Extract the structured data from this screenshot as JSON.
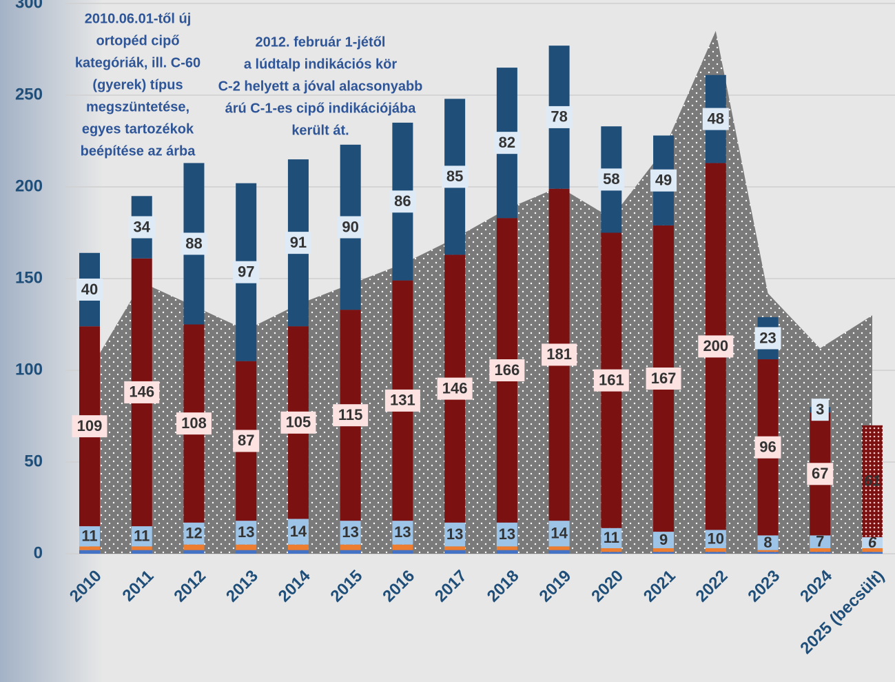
{
  "chart_data": {
    "type": "bar",
    "annotations": [
      [
        "2010.06.01-től új",
        "ortopéd cipő",
        "kategóriák, ill. C-60",
        "(gyerek) típus",
        "megszüntetése,",
        "egyes tartozékok",
        "beépítése az árba"
      ],
      [
        "2012. február 1-jétől",
        "a lúdtalp indikációs kör",
        "C-2 helyett a jóval alacsonyabb",
        "árú C-1-es cipő indikációjába",
        "került át."
      ]
    ],
    "categories": [
      "2010",
      "2011",
      "2012",
      "2013",
      "2014",
      "2015",
      "2016",
      "2017",
      "2018",
      "2019",
      "2020",
      "2021",
      "2022",
      "2023",
      "2024",
      "2025 (becsült)"
    ],
    "area": {
      "color": "#7a7a7a",
      "values": [
        100,
        148,
        135,
        122,
        136,
        147,
        158,
        172,
        188,
        200,
        183,
        220,
        285,
        142,
        112,
        130
      ]
    },
    "series": [
      {
        "color": "#4472c4",
        "values": [
          2,
          2,
          2,
          2,
          2,
          2,
          2,
          2,
          2,
          2,
          1,
          1,
          1,
          1,
          1,
          1
        ]
      },
      {
        "color": "#ed7d31",
        "values": [
          2,
          2,
          3,
          3,
          3,
          3,
          3,
          2,
          2,
          2,
          2,
          2,
          2,
          1,
          2,
          2
        ]
      },
      {
        "color": "#9dc3e6",
        "show_labels": true,
        "values": [
          11,
          11,
          12,
          13,
          14,
          13,
          13,
          13,
          13,
          14,
          11,
          9,
          10,
          8,
          7,
          6
        ]
      },
      {
        "color": "#7b1111",
        "show_labels": true,
        "values": [
          109,
          146,
          108,
          87,
          105,
          115,
          131,
          146,
          166,
          181,
          161,
          167,
          200,
          96,
          67,
          61
        ]
      },
      {
        "color": "#1f4e79",
        "show_labels": true,
        "values": [
          40,
          34,
          88,
          97,
          91,
          90,
          86,
          85,
          82,
          78,
          58,
          49,
          48,
          23,
          3,
          null
        ]
      }
    ],
    "ylim": [
      0,
      300
    ],
    "yticks": [
      0,
      50,
      100,
      150,
      200,
      250,
      300
    ],
    "grid": true
  }
}
